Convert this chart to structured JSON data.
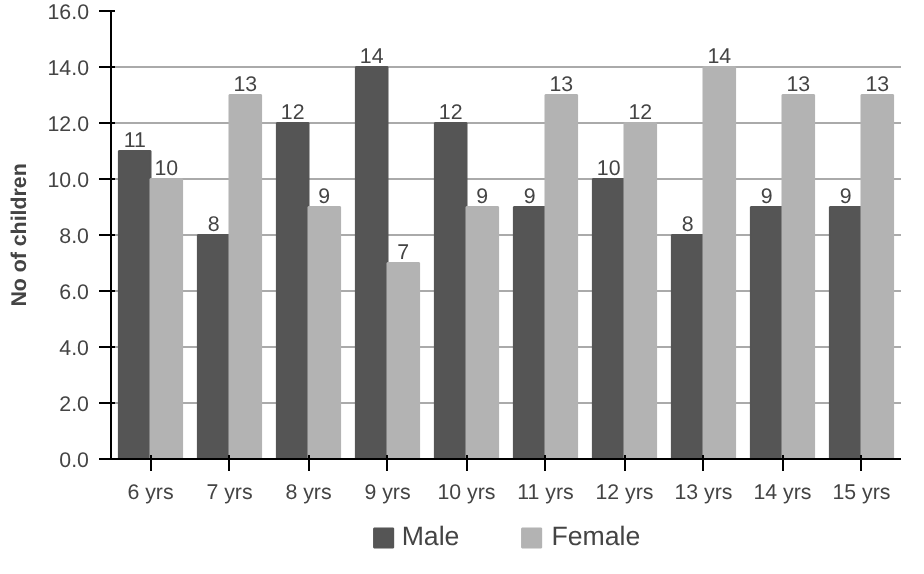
{
  "chart_data": {
    "type": "bar",
    "ylabel": "No of children",
    "categories": [
      "6 yrs",
      "7 yrs",
      "8 yrs",
      "9 yrs",
      "10 yrs",
      "11 yrs",
      "12 yrs",
      "13 yrs",
      "14 yrs",
      "15 yrs"
    ],
    "series": [
      {
        "name": "Male",
        "color": "#555555",
        "values": [
          11,
          8,
          12,
          14,
          12,
          9,
          10,
          8,
          9,
          9
        ]
      },
      {
        "name": "Female",
        "color": "#b3b3b3",
        "values": [
          10,
          13,
          9,
          7,
          9,
          13,
          12,
          14,
          13,
          13
        ]
      }
    ],
    "ylim": [
      0,
      16
    ],
    "yticks": [
      {
        "value": 0,
        "label": "0.0"
      },
      {
        "value": 2,
        "label": "2.0"
      },
      {
        "value": 4,
        "label": "4.0"
      },
      {
        "value": 6,
        "label": "6.0"
      },
      {
        "value": 8,
        "label": "8.0"
      },
      {
        "value": 10,
        "label": "10.0"
      },
      {
        "value": 12,
        "label": "12.0"
      },
      {
        "value": 14,
        "label": "14.0"
      },
      {
        "value": 16,
        "label": "16.0"
      }
    ],
    "grid": "y",
    "legend": "bottom",
    "data_labels": true
  }
}
